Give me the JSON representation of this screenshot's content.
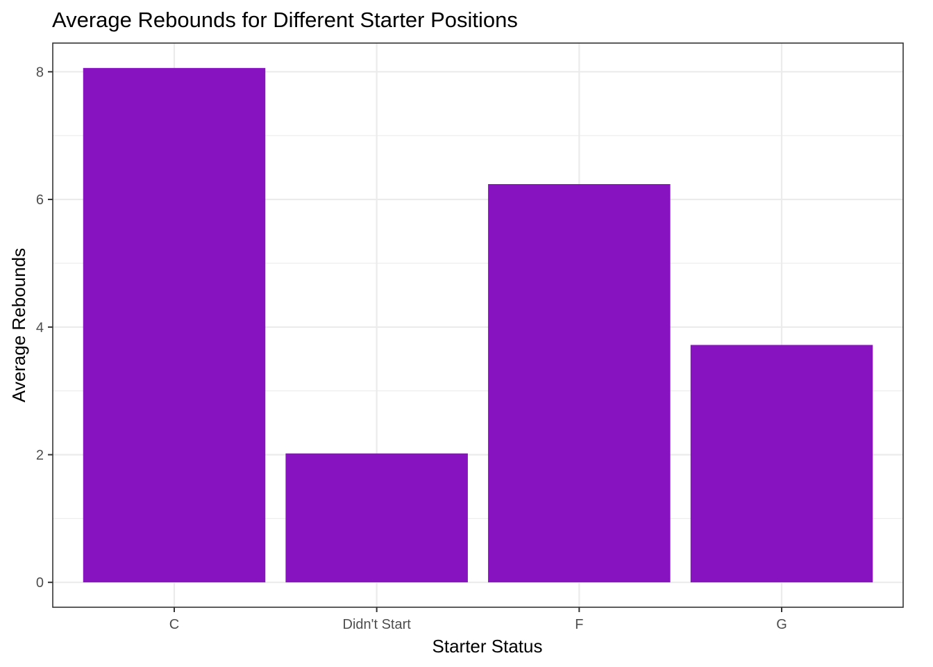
{
  "chart_data": {
    "type": "bar",
    "title": "Average Rebounds for Different Starter Positions",
    "xlabel": "Starter Status",
    "ylabel": "Average Rebounds",
    "categories": [
      "C",
      "Didn't Start",
      "F",
      "G"
    ],
    "values": [
      8.06,
      2.02,
      6.24,
      3.72
    ],
    "ylim": [
      -0.39,
      8.45
    ],
    "yticks": [
      0,
      2,
      4,
      6,
      8
    ],
    "ytick_labels": [
      "0",
      "2",
      "4",
      "6",
      "8"
    ],
    "bar_color": "#8612C0",
    "grid": true,
    "legend": "none"
  }
}
